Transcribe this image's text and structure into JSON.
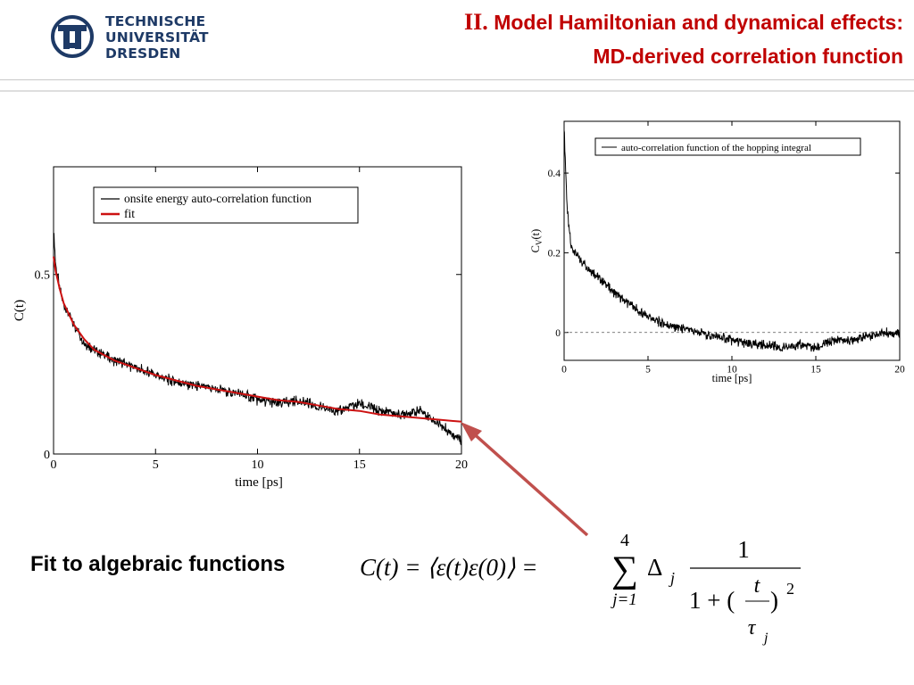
{
  "header": {
    "logo_lines": [
      "TECHNISCHE",
      "UNIVERSITÄT",
      "DRESDEN"
    ],
    "title_numeral": "II.",
    "title_line1": "Model Hamiltonian and dynamical effects:",
    "title_line2": "MD-derived correlation function",
    "title_color": "#c00000"
  },
  "chart_data": [
    {
      "type": "line",
      "xlabel": "time [ps]",
      "ylabel": "C(t)",
      "xlim": [
        0,
        20
      ],
      "ylim": [
        0,
        0.8
      ],
      "x_ticks": [
        "0",
        "5",
        "10",
        "15",
        "20"
      ],
      "y_ticks": [
        "0",
        "0.5"
      ],
      "grid": false,
      "legend_position": "top-right",
      "series": [
        {
          "name": "onsite energy auto-correlation function",
          "color": "#000000",
          "x": [
            0,
            0.1,
            0.3,
            0.5,
            1,
            1.5,
            2,
            3,
            4,
            5,
            6,
            7,
            8,
            9,
            10,
            11,
            12,
            13,
            14,
            15,
            16,
            17,
            18,
            19,
            20
          ],
          "y": [
            0.62,
            0.53,
            0.46,
            0.42,
            0.36,
            0.31,
            0.29,
            0.26,
            0.24,
            0.22,
            0.2,
            0.19,
            0.18,
            0.17,
            0.15,
            0.14,
            0.15,
            0.13,
            0.12,
            0.14,
            0.12,
            0.11,
            0.12,
            0.08,
            0.04
          ]
        },
        {
          "name": "fit",
          "color": "#cc1111",
          "x": [
            0,
            0.1,
            0.3,
            0.5,
            1,
            1.5,
            2,
            3,
            4,
            5,
            6,
            7,
            8,
            9,
            10,
            11,
            12,
            13,
            14,
            15,
            16,
            17,
            18,
            19,
            20
          ],
          "y": [
            0.55,
            0.51,
            0.46,
            0.42,
            0.36,
            0.32,
            0.29,
            0.26,
            0.24,
            0.22,
            0.205,
            0.19,
            0.18,
            0.17,
            0.16,
            0.15,
            0.145,
            0.135,
            0.125,
            0.12,
            0.11,
            0.105,
            0.1,
            0.095,
            0.09
          ]
        }
      ]
    },
    {
      "type": "line",
      "xlabel": "time [ps]",
      "ylabel": "C_V(t)",
      "xlim": [
        0,
        20
      ],
      "ylim": [
        -0.07,
        0.53
      ],
      "x_ticks": [
        "0",
        "5",
        "10",
        "15",
        "20"
      ],
      "y_ticks": [
        "0",
        "0.2",
        "0.4"
      ],
      "grid": false,
      "legend_position": "top-right",
      "zero_line": true,
      "series": [
        {
          "name": "auto-correlation function of the hopping integral",
          "color": "#000000",
          "x": [
            0,
            0.05,
            0.2,
            0.4,
            0.7,
            1,
            1.5,
            2,
            2.5,
            3,
            3.5,
            4,
            4.5,
            5,
            6,
            7,
            8,
            9,
            10,
            11,
            12,
            13,
            14,
            15,
            16,
            17,
            18,
            19,
            20
          ],
          "y": [
            0.52,
            0.45,
            0.3,
            0.22,
            0.2,
            0.18,
            0.16,
            0.14,
            0.12,
            0.1,
            0.08,
            0.07,
            0.05,
            0.04,
            0.02,
            0.01,
            0,
            -0.01,
            -0.02,
            -0.03,
            -0.03,
            -0.04,
            -0.03,
            -0.04,
            -0.02,
            -0.02,
            -0.01,
            0,
            0
          ]
        }
      ]
    }
  ],
  "caption": "Fit to algebraic functions",
  "formula": {
    "lhs": "C(t) = ⟨ε(t)ε(0)⟩ =",
    "sum_upper": "4",
    "sum_lower": "j=1",
    "delta": "Δ",
    "delta_sub": "j",
    "numerator": "1",
    "denominator_left": "1 + (",
    "t": "t",
    "tau": "τ",
    "tau_sub": "j",
    "denominator_right": ")",
    "power": "2"
  }
}
